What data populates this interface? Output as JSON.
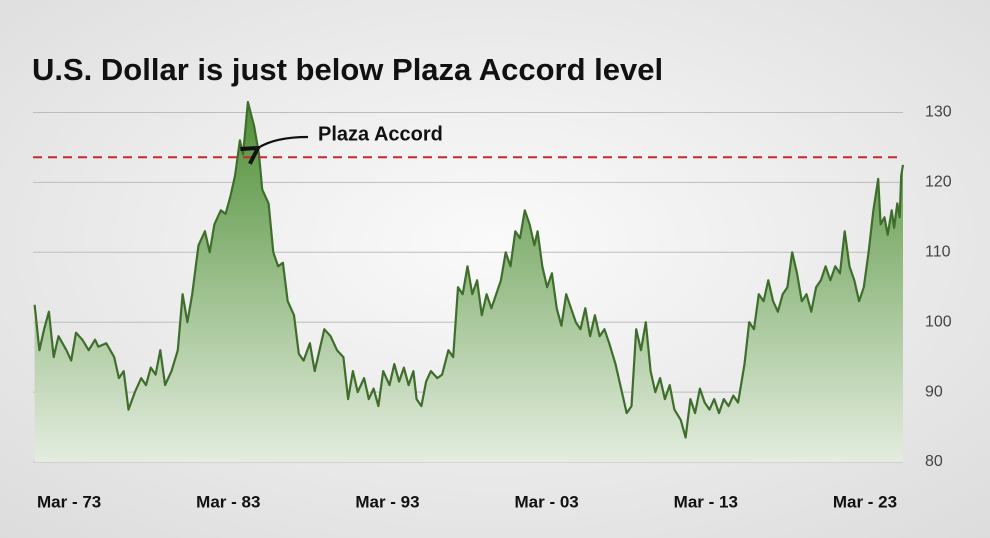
{
  "chart_data": {
    "type": "area",
    "title": "U.S. Dollar is just below Plaza Accord level",
    "x": [
      1971.0,
      1971.3,
      1971.6,
      1971.9,
      1972.2,
      1972.5,
      1973.0,
      1973.3,
      1973.6,
      1974.0,
      1974.4,
      1974.8,
      1975.0,
      1975.5,
      1976.0,
      1976.3,
      1976.6,
      1976.9,
      1977.3,
      1977.7,
      1978.0,
      1978.3,
      1978.6,
      1978.9,
      1979.2,
      1979.6,
      1980.0,
      1980.3,
      1980.6,
      1980.9,
      1981.3,
      1981.7,
      1982.0,
      1982.3,
      1982.7,
      1983.0,
      1983.3,
      1983.6,
      1983.9,
      1984.1,
      1984.4,
      1984.8,
      1985.1,
      1985.3,
      1985.7,
      1986.0,
      1986.3,
      1986.6,
      1986.9,
      1987.3,
      1987.6,
      1987.9,
      1988.3,
      1988.6,
      1988.9,
      1989.2,
      1989.6,
      1990.0,
      1990.4,
      1990.7,
      1991.0,
      1991.3,
      1991.7,
      1992.0,
      1992.3,
      1992.6,
      1992.9,
      1993.3,
      1993.6,
      1993.9,
      1994.2,
      1994.5,
      1994.8,
      1995.0,
      1995.3,
      1995.6,
      1995.9,
      1996.3,
      1996.6,
      1997.0,
      1997.3,
      1997.6,
      1997.9,
      1998.2,
      1998.5,
      1998.8,
      1999.1,
      1999.4,
      1999.7,
      2000.0,
      2000.3,
      2000.6,
      2000.9,
      2001.2,
      2001.5,
      2001.8,
      2002.1,
      2002.4,
      2002.6,
      2002.9,
      2003.2,
      2003.5,
      2003.8,
      2004.1,
      2004.4,
      2004.7,
      2005.0,
      2005.3,
      2005.6,
      2005.9,
      2006.2,
      2006.5,
      2006.8,
      2007.1,
      2007.5,
      2007.9,
      2008.2,
      2008.5,
      2008.8,
      2009.1,
      2009.4,
      2009.7,
      2010.0,
      2010.3,
      2010.6,
      2010.9,
      2011.2,
      2011.6,
      2011.9,
      2012.2,
      2012.5,
      2012.8,
      2013.1,
      2013.4,
      2013.7,
      2014.0,
      2014.3,
      2014.6,
      2014.9,
      2015.2,
      2015.6,
      2015.9,
      2016.2,
      2016.5,
      2016.8,
      2017.1,
      2017.4,
      2017.7,
      2018.0,
      2018.3,
      2018.6,
      2018.9,
      2019.2,
      2019.5,
      2019.8,
      2020.1,
      2020.4,
      2020.7,
      2021.0,
      2021.3,
      2021.6,
      2021.9,
      2022.2,
      2022.5,
      2022.8,
      2023.1,
      2023.4,
      2023.7,
      2024.0,
      2024.15,
      2024.4,
      2024.6,
      2024.85,
      2025.0,
      2025.2,
      2025.35,
      2025.45,
      2025.56
    ],
    "series": [
      {
        "color": "#3f6e2c",
        "values": [
          102.5,
          96,
          99,
          101.5,
          95,
          98,
          96,
          94.5,
          98.5,
          97.5,
          96,
          97.5,
          96.5,
          97,
          95,
          92,
          93,
          87.5,
          90,
          92,
          91,
          93.5,
          92.5,
          96,
          91,
          93,
          96,
          104,
          100,
          104,
          111,
          113,
          110,
          114,
          116,
          115.5,
          118,
          121,
          126,
          124,
          131.5,
          128,
          124,
          119,
          117,
          110,
          108,
          108.5,
          103,
          101,
          95.5,
          94.5,
          97,
          93,
          96,
          99,
          98,
          96,
          95,
          89,
          93,
          90,
          92,
          89,
          90.5,
          88,
          93,
          91,
          94,
          91.5,
          93.5,
          91,
          93,
          89,
          88,
          91.5,
          93,
          92,
          92.5,
          96,
          95,
          105,
          104,
          108,
          104,
          106,
          101,
          104,
          102,
          104,
          106,
          110,
          108,
          113,
          112,
          116,
          114,
          111,
          113,
          108,
          105,
          107,
          102,
          99.5,
          104,
          102,
          100,
          99,
          102,
          98,
          101,
          98,
          99,
          97,
          94,
          90,
          87,
          88,
          99,
          96,
          100,
          93,
          90,
          92,
          89,
          91,
          87.5,
          86,
          83.5,
          89,
          87,
          90.5,
          88.5,
          87.5,
          89,
          87,
          89,
          88,
          89.5,
          88.5,
          94,
          100,
          99,
          104,
          103,
          106,
          103,
          101.5,
          104,
          105,
          110,
          107,
          103,
          104,
          101.5,
          105,
          106,
          108,
          106,
          108,
          107,
          113,
          108,
          106,
          103,
          105,
          110,
          116,
          120.5,
          114,
          115,
          112.5,
          116,
          113.5,
          117,
          115,
          121,
          122.5
        ]
      }
    ],
    "xlim": [
      1970.9,
      2025.56
    ],
    "ylim": [
      80,
      131.5
    ],
    "xticks": [
      {
        "value": 1973.17,
        "label": "Mar - 73"
      },
      {
        "value": 1983.17,
        "label": "Mar - 83"
      },
      {
        "value": 1993.17,
        "label": "Mar - 93"
      },
      {
        "value": 2003.17,
        "label": "Mar - 03"
      },
      {
        "value": 2013.17,
        "label": "Mar - 13"
      },
      {
        "value": 2023.17,
        "label": "Mar - 23"
      }
    ],
    "yticks": [
      80,
      90,
      100,
      110,
      120,
      130
    ],
    "grid": true,
    "reference_line": {
      "value": 123.6,
      "label": "Plaza Accord",
      "color": "#c62a2f"
    }
  }
}
